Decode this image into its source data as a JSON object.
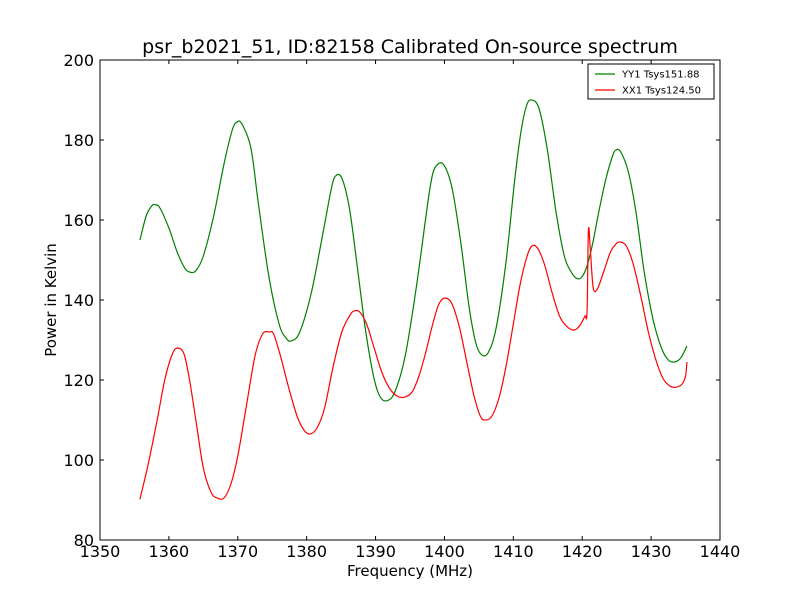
{
  "chart_data": {
    "type": "line",
    "title": "psr_b2021_51, ID:82158 Calibrated On-source spectrum",
    "xlabel": "Frequency (MHz)",
    "ylabel": "Power in Kelvin",
    "xlim": [
      1350,
      1440
    ],
    "ylim": [
      80,
      200
    ],
    "xticks": [
      1350,
      1360,
      1370,
      1380,
      1390,
      1400,
      1410,
      1420,
      1430,
      1440
    ],
    "yticks": [
      80,
      100,
      120,
      140,
      160,
      180,
      200
    ],
    "grid": false,
    "legend_position": "top-right",
    "series": [
      {
        "name": "YY1 Tsys151.88",
        "color": "#008000",
        "x": [
          1355.8,
          1356.7,
          1357.5,
          1358.0,
          1358.7,
          1360.0,
          1361.2,
          1362.3,
          1363.0,
          1363.9,
          1365.0,
          1366.5,
          1368.0,
          1369.2,
          1369.9,
          1370.6,
          1371.9,
          1373.0,
          1374.5,
          1376.0,
          1377.0,
          1377.8,
          1379.0,
          1380.7,
          1382.5,
          1383.6,
          1384.2,
          1385.1,
          1386.2,
          1387.3,
          1388.5,
          1389.7,
          1390.6,
          1391.6,
          1392.8,
          1394.3,
          1395.9,
          1397.4,
          1398.0,
          1398.6,
          1399.8,
          1401.1,
          1402.4,
          1403.6,
          1404.6,
          1405.5,
          1406.4,
          1407.5,
          1408.9,
          1410.2,
          1411.1,
          1411.9,
          1412.6,
          1413.7,
          1414.9,
          1416.2,
          1417.4,
          1418.4,
          1419.1,
          1419.8,
          1420.6,
          1421.5,
          1422.4,
          1423.4,
          1424.4,
          1424.9,
          1425.6,
          1426.7,
          1427.8,
          1429.0,
          1430.3,
          1431.5,
          1432.5,
          1433.4,
          1434.3,
          1435.2
        ],
        "y": [
          155,
          161,
          163.5,
          163.8,
          163,
          158,
          152,
          148,
          147,
          147.3,
          151,
          161,
          174,
          182.5,
          184.5,
          184,
          178,
          164,
          146,
          134,
          130.5,
          129.8,
          132,
          142,
          158,
          168,
          171,
          170.5,
          163,
          149,
          133,
          121,
          116,
          114.8,
          117,
          126,
          143,
          162,
          169,
          173,
          174,
          168,
          154,
          138,
          129,
          126.2,
          127,
          133,
          149,
          170,
          182,
          188.5,
          190,
          188,
          178,
          162,
          151,
          147,
          145.5,
          145.5,
          148,
          154,
          162,
          170,
          176,
          177.5,
          177,
          172,
          162,
          147,
          135,
          128,
          125,
          124.5,
          125.5,
          128.5
        ]
      },
      {
        "name": "XX1 Tsys124.50",
        "color": "#ff0000",
        "x": [
          1355.8,
          1357.0,
          1358.3,
          1359.4,
          1360.5,
          1361.3,
          1362.2,
          1363.0,
          1364.0,
          1365.0,
          1366.1,
          1367.0,
          1368.0,
          1369.0,
          1370.0,
          1371.2,
          1372.5,
          1373.6,
          1374.6,
          1375.2,
          1376.2,
          1377.4,
          1378.6,
          1379.6,
          1380.5,
          1381.5,
          1382.6,
          1383.8,
          1385.1,
          1386.4,
          1387.0,
          1387.7,
          1388.7,
          1389.8,
          1390.9,
          1392.0,
          1393.1,
          1394.2,
          1395.3,
          1396.3,
          1397.3,
          1398.3,
          1399.2,
          1400.1,
          1401.1,
          1402.2,
          1403.3,
          1404.3,
          1405.2,
          1405.9,
          1406.9,
          1408.0,
          1409.0,
          1410.0,
          1411.0,
          1412.0,
          1412.7,
          1413.5,
          1414.5,
          1415.6,
          1416.7,
          1417.7,
          1418.6,
          1419.2,
          1419.8,
          1420.4,
          1420.7,
          1420.9,
          1421.2,
          1421.6,
          1422.2,
          1423.1,
          1424.1,
          1424.9,
          1425.5,
          1426.4,
          1427.4,
          1428.5,
          1429.6,
          1430.7,
          1431.7,
          1432.7,
          1433.6,
          1434.5,
          1435.0,
          1435.2
        ],
        "y": [
          90.2,
          99,
          110,
          120,
          126.5,
          128,
          126.5,
          120,
          109,
          98,
          92,
          90.5,
          90.5,
          94,
          101,
          113,
          126,
          131.5,
          132,
          131.5,
          126,
          118,
          111,
          107.5,
          106.5,
          108,
          113,
          123,
          132,
          136.5,
          137.3,
          137,
          134,
          128,
          122,
          118,
          116,
          115.7,
          117,
          121,
          127,
          134,
          139,
          140.5,
          139,
          133,
          124,
          116,
          111,
          110,
          111,
          116,
          124,
          134,
          144,
          151,
          153.5,
          153,
          149,
          142,
          136,
          133.5,
          132.5,
          132.8,
          134,
          136,
          137,
          157.5,
          152,
          143,
          142.8,
          147,
          152,
          154,
          154.5,
          153.5,
          149,
          141,
          132,
          125,
          120.5,
          118.5,
          118.2,
          119,
          121,
          124.5
        ]
      }
    ]
  }
}
